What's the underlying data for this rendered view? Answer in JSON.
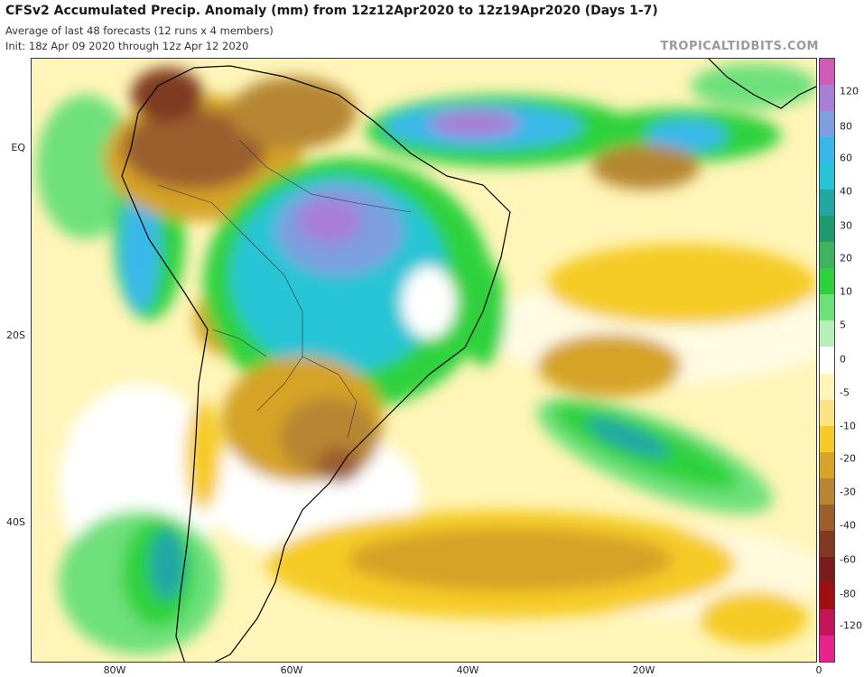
{
  "header": {
    "title": "CFSv2 Accumulated Precip. Anomaly (mm) from 12z12Apr2020 to 12z19Apr2020 (Days 1-7)",
    "subtitle1": "Average of last 48 forecasts (12 runs x 4 members)",
    "subtitle2": "Init: 18z Apr 09 2020 through 12z Apr 12 2020",
    "brand": "TROPICALTIDBITS.COM"
  },
  "axes": {
    "lat_labels": [
      "EQ",
      "20S",
      "40S"
    ],
    "lon_labels": [
      "80W",
      "60W",
      "40W",
      "20W",
      "0"
    ]
  },
  "colorbar": {
    "labels": [
      "120",
      "80",
      "60",
      "40",
      "30",
      "20",
      "10",
      "5",
      "0",
      "-5",
      "-10",
      "-20",
      "-30",
      "-40",
      "-60",
      "-80",
      "-120"
    ],
    "colors": [
      "#d05cb8",
      "#a87ed6",
      "#7c9fe0",
      "#38b8ea",
      "#27c4d4",
      "#22a7a5",
      "#1f9a6e",
      "#3eb25e",
      "#2ed13d",
      "#6ee07a",
      "#b6f0b8",
      "#ffffff",
      "#fff5b8",
      "#fbe384",
      "#f5cb28",
      "#d5a327",
      "#b68632",
      "#9b5f2e",
      "#7f3a21",
      "#7a1c1c",
      "#a00f0f",
      "#c4155a",
      "#e8238c"
    ]
  },
  "map_features": {
    "regions": [
      "south-america",
      "atlantic-ocean",
      "pacific-ocean",
      "africa-coast"
    ]
  }
}
